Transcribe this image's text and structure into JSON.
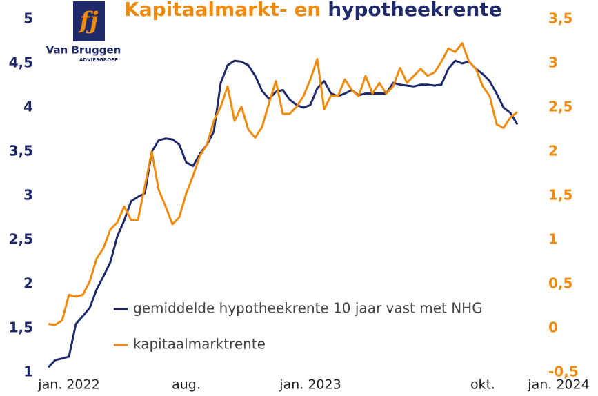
{
  "chart_data": {
    "type": "line",
    "title": [
      "Kapitaalmarkt- en",
      "hypotheekrente"
    ],
    "title_colors": [
      "#f08a0c",
      "#1f2a6b"
    ],
    "logo": {
      "name": "Van Bruggen",
      "sub": "ADVIESGROEP"
    },
    "categories": [
      null,
      null,
      null,
      "jan. 2022",
      null,
      null,
      null,
      null,
      null,
      null,
      null,
      null,
      null,
      null,
      null,
      null,
      null,
      null,
      null,
      null,
      "aug.",
      null,
      null,
      null,
      null,
      null,
      null,
      null,
      null,
      null,
      null,
      null,
      null,
      null,
      null,
      null,
      null,
      null,
      "jan. 2023",
      null,
      null,
      null,
      null,
      null,
      null,
      null,
      null,
      null,
      null,
      null,
      null,
      null,
      null,
      null,
      null,
      null,
      null,
      null,
      null,
      null,
      null,
      null,
      null,
      "okt.",
      null,
      null,
      null,
      null,
      null,
      null,
      null,
      null,
      null,
      null,
      "jan. 2024"
    ],
    "series": [
      {
        "name": "gemiddelde hypotheekrente 10 jaar vast met NHG",
        "color": "#1f2a6b",
        "values": [
          1.06,
          1.14,
          1.16,
          1.18,
          1.55,
          1.64,
          1.73,
          1.94,
          2.09,
          2.25,
          2.54,
          2.72,
          2.94,
          2.99,
          3.03,
          3.5,
          3.63,
          3.65,
          3.64,
          3.58,
          3.38,
          3.34,
          3.48,
          3.58,
          3.73,
          4.28,
          4.48,
          4.53,
          4.52,
          4.48,
          4.36,
          4.19,
          4.1,
          4.18,
          4.2,
          4.09,
          4.03,
          4.0,
          4.03,
          4.22,
          4.3,
          4.16,
          4.13,
          4.16,
          4.2,
          4.14,
          4.16,
          4.16,
          4.16,
          4.16,
          4.28,
          4.26,
          4.25,
          4.24,
          4.26,
          4.26,
          4.25,
          4.26,
          4.44,
          4.53,
          4.5,
          4.52,
          4.44,
          4.38,
          4.3,
          4.16,
          4.0,
          3.94,
          3.81,
          null,
          null,
          null,
          null,
          null,
          null
        ]
      },
      {
        "name": "kapitaalmarktrente",
        "color": "#f08a0c",
        "axis": "y2",
        "values": [
          0.05,
          0.04,
          0.09,
          0.38,
          0.36,
          0.38,
          0.53,
          0.79,
          0.91,
          1.12,
          1.2,
          1.38,
          1.23,
          1.23,
          1.61,
          2.0,
          1.57,
          1.38,
          1.18,
          1.26,
          1.53,
          1.73,
          1.96,
          2.08,
          2.35,
          2.51,
          2.74,
          2.35,
          2.51,
          2.25,
          2.16,
          2.28,
          2.55,
          2.8,
          2.43,
          2.43,
          2.51,
          2.63,
          2.82,
          3.05,
          2.48,
          2.64,
          2.63,
          2.82,
          2.7,
          2.63,
          2.86,
          2.66,
          2.78,
          2.66,
          2.74,
          2.95,
          2.78,
          2.86,
          2.94,
          2.86,
          2.9,
          3.02,
          3.17,
          3.13,
          3.23,
          3.02,
          2.94,
          2.74,
          2.63,
          2.31,
          2.27,
          2.39,
          2.45,
          null,
          null,
          null,
          null,
          null,
          null
        ]
      }
    ],
    "ylim": [
      1,
      5
    ],
    "yticks": [
      1,
      {
        "value": 1.5,
        "label": "1,5"
      },
      2,
      {
        "value": 2.5,
        "label": "2,5"
      },
      3,
      {
        "value": 3.5,
        "label": "3,5"
      },
      4,
      {
        "value": 4.5,
        "label": "4,5"
      },
      5
    ],
    "y2lim": [
      -0.5,
      3.5
    ],
    "y2ticks": [
      {
        "value": -0.5,
        "label": "-0,5"
      },
      0,
      {
        "value": 0.5,
        "label": "0,5"
      },
      1,
      {
        "value": 1.5,
        "label": "1,5"
      },
      2,
      {
        "value": 2.5,
        "label": "2,5"
      },
      3,
      {
        "value": 3.5,
        "label": "3,5"
      }
    ],
    "grid": false
  }
}
